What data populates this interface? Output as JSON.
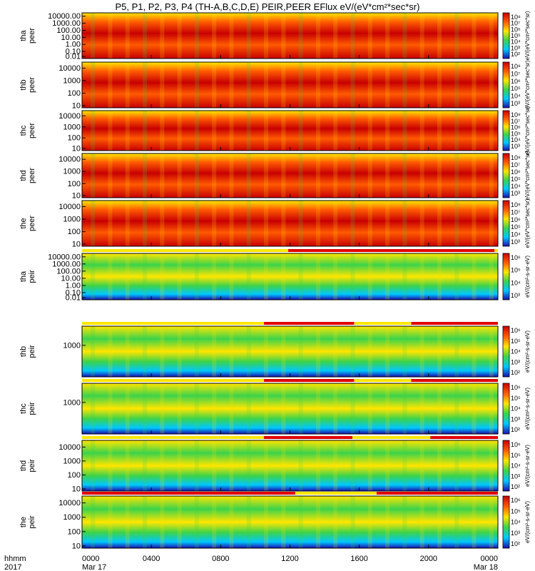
{
  "title": "P5, P1, P2, P3, P4 (TH-A,B,C,D,E) PEIR,PEER EFlux eV/(eV*cm²*sec*sr)",
  "time_axis": {
    "row1_label": "hhmm",
    "row2_label": "2017",
    "ticks": [
      {
        "hhmm": "0000",
        "date": "Mar 17"
      },
      {
        "hhmm": "0400",
        "date": ""
      },
      {
        "hhmm": "0800",
        "date": ""
      },
      {
        "hhmm": "1200",
        "date": ""
      },
      {
        "hhmm": "1600",
        "date": ""
      },
      {
        "hhmm": "2000",
        "date": ""
      },
      {
        "hhmm": "0000",
        "date": "Mar 18"
      }
    ]
  },
  "colorbar_units": "[eV/(cm²-s-sr-eV)]",
  "colors": {
    "low": "#1a0dab",
    "mid_low": "#00c8ff",
    "mid": "#3cd34a",
    "mid_high": "#ffe600",
    "high": "#ff5a00",
    "max": "#c80000",
    "gap": "#000000",
    "quality_flag": "#e10000"
  },
  "chart_data": {
    "type": "heatmap",
    "x_range_hours": [
      0,
      24
    ],
    "panels": [
      {
        "probe": "tha",
        "species": "peer",
        "ylim": [
          0.01,
          30000
        ],
        "yticks": [
          "10000.00",
          "1000.00",
          "100.00",
          "10.00",
          "1.00",
          "0.10",
          "0.01"
        ],
        "cbar_ticks": [
          "10⁸",
          "10⁷",
          "10⁶",
          "10⁵",
          "10⁴",
          "10³",
          "10²"
        ],
        "cbar_label": "eV/(eV*cm²*sec*sr)"
      },
      {
        "probe": "thb",
        "species": "peer",
        "ylim": [
          7,
          30000
        ],
        "yticks": [
          "10000",
          "1000",
          "100",
          "10"
        ],
        "cbar_ticks": [
          "10⁸",
          "10⁷",
          "10⁶",
          "10⁵",
          "10⁴",
          "10³"
        ],
        "cbar_label": "eV/(eV*cm²*sec*sr)"
      },
      {
        "probe": "thc",
        "species": "peer",
        "ylim": [
          7,
          30000
        ],
        "yticks": [
          "10000",
          "1000",
          "100",
          "10"
        ],
        "cbar_ticks": [
          "10⁸",
          "10⁷",
          "10⁶",
          "10⁵",
          "10⁴",
          "10³"
        ],
        "cbar_label": "eV/(eV*cm²*sec*sr)"
      },
      {
        "probe": "thd",
        "species": "peer",
        "ylim": [
          7,
          30000
        ],
        "yticks": [
          "10000",
          "1000",
          "100",
          "10"
        ],
        "cbar_ticks": [
          "10⁸",
          "10⁷",
          "10⁶",
          "10⁵",
          "10⁴",
          "10³"
        ],
        "cbar_label": "eV/(eV*cm²*sec*sr)"
      },
      {
        "probe": "the",
        "species": "peer",
        "ylim": [
          7,
          30000
        ],
        "yticks": [
          "10000",
          "1000",
          "100",
          "10"
        ],
        "cbar_ticks": [
          "10⁸",
          "10⁷",
          "10⁶",
          "10⁵",
          "10⁴",
          "10³"
        ],
        "cbar_label": "eV/(eV*cm²*sec*sr)"
      },
      {
        "probe": "tha",
        "species": "peir",
        "ylim": [
          0.01,
          30000
        ],
        "yticks": [
          "10000.00",
          "1000.00",
          "100.00",
          "10.00",
          "1.00",
          "0.10",
          "0.01"
        ],
        "cbar_ticks": [
          "10⁶",
          "10⁵",
          "10⁴",
          "10³"
        ],
        "cbar_label": "eV/(cm²-s-sr-eV)"
      },
      {
        "probe": "thb",
        "species": "peir",
        "ylim": [
          5,
          25000
        ],
        "yticks": [
          "1000"
        ],
        "cbar_ticks": [
          "10⁶",
          "10⁵",
          "10⁴",
          "10³",
          "10²"
        ],
        "cbar_label": "eV/(cm²-s-sr-eV)"
      },
      {
        "probe": "thc",
        "species": "peir",
        "ylim": [
          5,
          25000
        ],
        "yticks": [
          "1000"
        ],
        "cbar_ticks": [
          "10⁶",
          "10⁵",
          "10⁴",
          "10³",
          "10²"
        ],
        "cbar_label": "eV/(cm²-s-sr-eV)"
      },
      {
        "probe": "thd",
        "species": "peir",
        "ylim": [
          7,
          30000
        ],
        "yticks": [
          "10000",
          "1000",
          "100",
          "10"
        ],
        "cbar_ticks": [
          "10⁶",
          "10⁵",
          "10⁴",
          "10³",
          "10²"
        ],
        "cbar_label": "eV/(cm²-s-sr-eV)"
      },
      {
        "probe": "the",
        "species": "peir",
        "ylim": [
          7,
          30000
        ],
        "yticks": [
          "10000",
          "1000",
          "100",
          "10"
        ],
        "cbar_ticks": [
          "10⁶",
          "10⁵",
          "10⁴",
          "10³",
          "10²"
        ],
        "cbar_label": "eV/(cm²-s-sr-eV)"
      }
    ],
    "quality_flags": [
      {
        "above_panel": 5,
        "flagged_hours": [
          [
            11.9,
            23.8
          ]
        ]
      },
      {
        "above_panel": 6,
        "flagged_hours": [
          [
            10.5,
            15.7
          ],
          [
            19.0,
            24.0
          ]
        ]
      },
      {
        "above_panel": 7,
        "flagged_hours": [
          [
            10.5,
            15.7
          ],
          [
            19.0,
            24.0
          ]
        ]
      },
      {
        "above_panel": 8,
        "flagged_hours": [
          [
            10.5,
            15.6
          ],
          [
            20.1,
            24.0
          ]
        ]
      },
      {
        "above_panel": 9,
        "flagged_hours": [
          [
            0.0,
            12.3
          ],
          [
            17.0,
            24.0
          ]
        ]
      }
    ]
  }
}
